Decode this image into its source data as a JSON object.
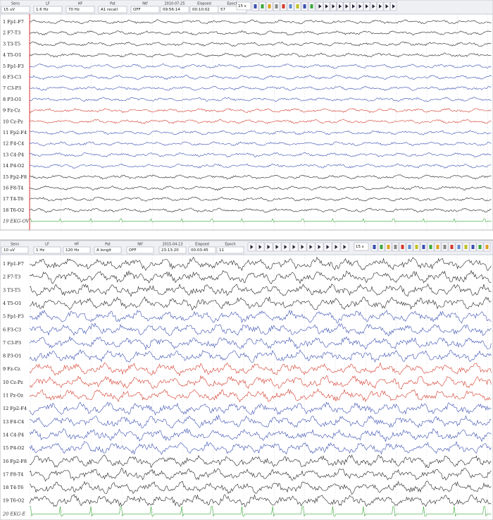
{
  "panels": [
    {
      "fields": [
        {
          "label": "Sens",
          "value": "15 uV"
        },
        {
          "label": "LF",
          "value": "1.6 Hz"
        },
        {
          "label": "HF",
          "value": "70 Hz"
        },
        {
          "label": "Pat",
          "value": "A1 recall"
        },
        {
          "label": "Ntf",
          "value": "OFF"
        },
        {
          "label": "2010-07-25",
          "value": "09:56:14"
        },
        {
          "label": "Elapsed",
          "value": "00:10:02"
        },
        {
          "label": "Epoch",
          "value": "57"
        }
      ],
      "epoch_select": "15 s",
      "channels": [
        {
          "label": "1 Fp1-F7",
          "color": "#222222"
        },
        {
          "label": "2 F7-T3",
          "color": "#222222"
        },
        {
          "label": "3 T3-T5",
          "color": "#222222"
        },
        {
          "label": "4 T5-O1",
          "color": "#222222"
        },
        {
          "label": "5 Fp1-F3",
          "color": "#3a4fb0"
        },
        {
          "label": "6 F3-C3",
          "color": "#3a4fb0"
        },
        {
          "label": "7 C3-P3",
          "color": "#3a4fb0"
        },
        {
          "label": "8 P3-O1",
          "color": "#3a4fb0"
        },
        {
          "label": "9 Fz-Cz",
          "color": "#d23a2a"
        },
        {
          "label": "10 Cz-Pz",
          "color": "#d23a2a"
        },
        {
          "label": "11 Fp2-F4",
          "color": "#3a4fb0"
        },
        {
          "label": "12 F4-C4",
          "color": "#3a4fb0"
        },
        {
          "label": "13 C4-P4",
          "color": "#3a4fb0"
        },
        {
          "label": "14 P4-O2",
          "color": "#3a4fb0"
        },
        {
          "label": "15 Fp2-F8",
          "color": "#222222"
        },
        {
          "label": "16 F8-T4",
          "color": "#222222"
        },
        {
          "label": "17 T4-T6",
          "color": "#222222"
        },
        {
          "label": "18 T6-O2",
          "color": "#222222"
        },
        {
          "label": "19 EKG-OV",
          "color": "#3aa83a"
        }
      ]
    },
    {
      "fields": [
        {
          "label": "Sens",
          "value": "10 uV"
        },
        {
          "label": "LF",
          "value": "1 Hz"
        },
        {
          "label": "HF",
          "value": "120 Hz"
        },
        {
          "label": "Pat",
          "value": "A longit"
        },
        {
          "label": "Ntf",
          "value": "OFF"
        },
        {
          "label": "2015-04-13",
          "value": "23:13:20"
        },
        {
          "label": "Elapsed",
          "value": "00:03:45"
        },
        {
          "label": "Epoch",
          "value": "11"
        }
      ],
      "epoch_select": "15 s",
      "channels": [
        {
          "label": "1 Fp1-F7",
          "color": "#222222"
        },
        {
          "label": "2 F7-T3",
          "color": "#222222"
        },
        {
          "label": "3 T3-T5",
          "color": "#222222"
        },
        {
          "label": "4 T5-O1",
          "color": "#222222"
        },
        {
          "label": "5 Fp1-F3",
          "color": "#3a4fb0"
        },
        {
          "label": "6 F3-C3",
          "color": "#3a4fb0"
        },
        {
          "label": "7 C3-P3",
          "color": "#3a4fb0"
        },
        {
          "label": "8 P3-O1",
          "color": "#3a4fb0"
        },
        {
          "label": "9 Fz-Cz",
          "color": "#d23a2a"
        },
        {
          "label": "10 Cz-Pz",
          "color": "#d23a2a"
        },
        {
          "label": "11 Pz-Oz",
          "color": "#d23a2a"
        },
        {
          "label": "12 Fp2-F4",
          "color": "#3a4fb0"
        },
        {
          "label": "13 F4-C4",
          "color": "#3a4fb0"
        },
        {
          "label": "14 C4-P4",
          "color": "#3a4fb0"
        },
        {
          "label": "15 P4-O2",
          "color": "#3a4fb0"
        },
        {
          "label": "16 Fp2-F8",
          "color": "#222222"
        },
        {
          "label": "17 F8-T4",
          "color": "#222222"
        },
        {
          "label": "18 T4-T6",
          "color": "#222222"
        },
        {
          "label": "19 T6-O2",
          "color": "#222222"
        },
        {
          "label": "20 EKG-E",
          "color": "#3aa83a"
        }
      ]
    }
  ]
}
